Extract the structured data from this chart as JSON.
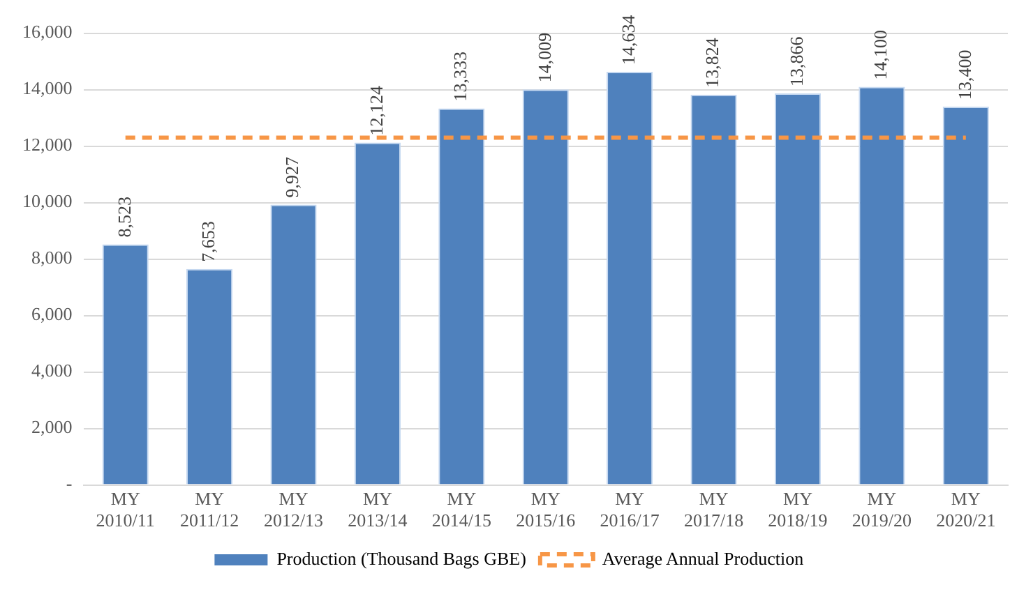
{
  "chart_data": {
    "type": "bar",
    "categories": [
      "MY 2010/11",
      "MY 2011/12",
      "MY 2012/13",
      "MY 2013/14",
      "MY 2014/15",
      "MY 2015/16",
      "MY 2016/17",
      "MY 2017/18",
      "MY 2018/19",
      "MY 2019/20",
      "MY 2020/21"
    ],
    "series": [
      {
        "name": "Production (Thousand Bags GBE)",
        "color": "#4f81bd",
        "values": [
          8523,
          7653,
          9927,
          12124,
          13333,
          14009,
          14634,
          13824,
          13866,
          14100,
          13400
        ],
        "value_labels": [
          "8,523",
          "7,653",
          "9,927",
          "12,124",
          "13,333",
          "14,009",
          "14,634",
          "13,824",
          "13,866",
          "14,100",
          "13,400"
        ]
      },
      {
        "name": "Average Annual Production",
        "type": "line",
        "color": "#f79646",
        "line_style": "dashed",
        "marker": "none",
        "values": [
          12300,
          12300,
          12300,
          12300,
          12300,
          12300,
          12300,
          12300,
          12300,
          12300,
          12300
        ]
      }
    ],
    "ylim": [
      0,
      16000
    ],
    "yticks": [
      {
        "value": 0,
        "label": "-"
      },
      {
        "value": 2000,
        "label": "2,000"
      },
      {
        "value": 4000,
        "label": "4,000"
      },
      {
        "value": 6000,
        "label": "6,000"
      },
      {
        "value": 8000,
        "label": "8,000"
      },
      {
        "value": 10000,
        "label": "10,000"
      },
      {
        "value": 12000,
        "label": "12,000"
      },
      {
        "value": 14000,
        "label": "14,000"
      },
      {
        "value": 16000,
        "label": "16,000"
      }
    ],
    "grid": "y",
    "legend": "bottom"
  }
}
